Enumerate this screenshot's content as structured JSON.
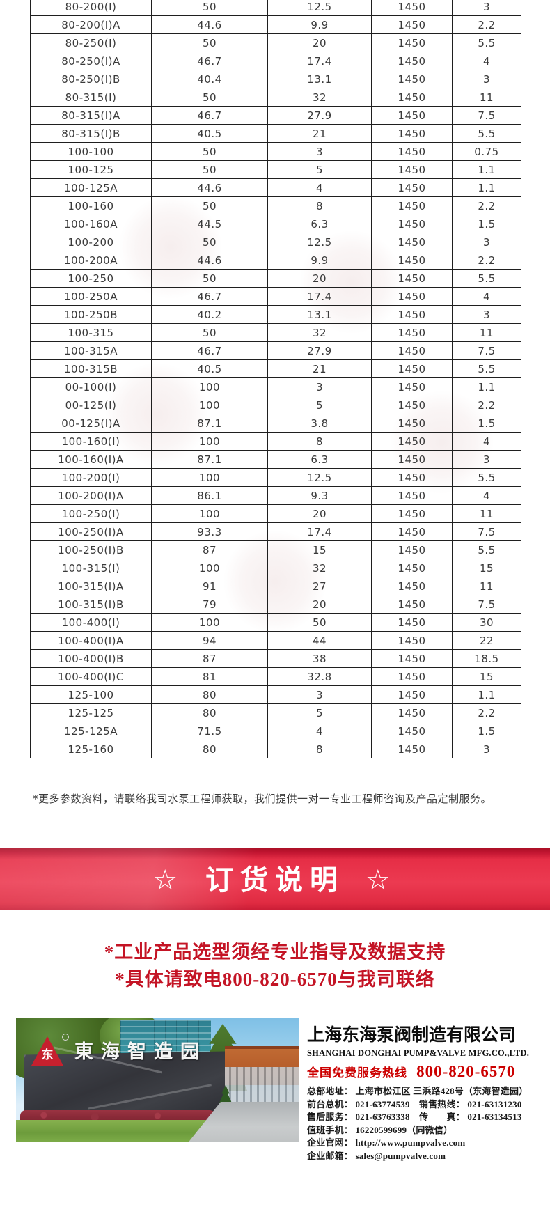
{
  "colors": {
    "banner_red": "#e62e46",
    "banner_red_dark": "#ab0f26",
    "notice_red": "#c41425",
    "hotline_red": "#cc0000",
    "logo_red": "#c6202e"
  },
  "table": {
    "rows": [
      [
        "80-200(I)",
        "50",
        "12.5",
        "1450",
        "3"
      ],
      [
        "80-200(I)A",
        "44.6",
        "9.9",
        "1450",
        "2.2"
      ],
      [
        "80-250(I)",
        "50",
        "20",
        "1450",
        "5.5"
      ],
      [
        "80-250(I)A",
        "46.7",
        "17.4",
        "1450",
        "4"
      ],
      [
        "80-250(I)B",
        "40.4",
        "13.1",
        "1450",
        "3"
      ],
      [
        "80-315(I)",
        "50",
        "32",
        "1450",
        "11"
      ],
      [
        "80-315(I)A",
        "46.7",
        "27.9",
        "1450",
        "7.5"
      ],
      [
        "80-315(I)B",
        "40.5",
        "21",
        "1450",
        "5.5"
      ],
      [
        "100-100",
        "50",
        "3",
        "1450",
        "0.75"
      ],
      [
        "100-125",
        "50",
        "5",
        "1450",
        "1.1"
      ],
      [
        "100-125A",
        "44.6",
        "4",
        "1450",
        "1.1"
      ],
      [
        "100-160",
        "50",
        "8",
        "1450",
        "2.2"
      ],
      [
        "100-160A",
        "44.5",
        "6.3",
        "1450",
        "1.5"
      ],
      [
        "100-200",
        "50",
        "12.5",
        "1450",
        "3"
      ],
      [
        "100-200A",
        "44.6",
        "9.9",
        "1450",
        "2.2"
      ],
      [
        "100-250",
        "50",
        "20",
        "1450",
        "5.5"
      ],
      [
        "100-250A",
        "46.7",
        "17.4",
        "1450",
        "4"
      ],
      [
        "100-250B",
        "40.2",
        "13.1",
        "1450",
        "3"
      ],
      [
        "100-315",
        "50",
        "32",
        "1450",
        "11"
      ],
      [
        "100-315A",
        "46.7",
        "27.9",
        "1450",
        "7.5"
      ],
      [
        "100-315B",
        "40.5",
        "21",
        "1450",
        "5.5"
      ],
      [
        "00-100(I)",
        "100",
        "3",
        "1450",
        "1.1"
      ],
      [
        "00-125(I)",
        "100",
        "5",
        "1450",
        "2.2"
      ],
      [
        "00-125(I)A",
        "87.1",
        "3.8",
        "1450",
        "1.5"
      ],
      [
        "100-160(I)",
        "100",
        "8",
        "1450",
        "4"
      ],
      [
        "100-160(I)A",
        "87.1",
        "6.3",
        "1450",
        "3"
      ],
      [
        "100-200(I)",
        "100",
        "12.5",
        "1450",
        "5.5"
      ],
      [
        "100-200(I)A",
        "86.1",
        "9.3",
        "1450",
        "4"
      ],
      [
        "100-250(I)",
        "100",
        "20",
        "1450",
        "11"
      ],
      [
        "100-250(I)A",
        "93.3",
        "17.4",
        "1450",
        "7.5"
      ],
      [
        "100-250(I)B",
        "87",
        "15",
        "1450",
        "5.5"
      ],
      [
        "100-315(I)",
        "100",
        "32",
        "1450",
        "15"
      ],
      [
        "100-315(I)A",
        "91",
        "27",
        "1450",
        "11"
      ],
      [
        "100-315(I)B",
        "79",
        "20",
        "1450",
        "7.5"
      ],
      [
        "100-400(I)",
        "100",
        "50",
        "1450",
        "30"
      ],
      [
        "100-400(I)A",
        "94",
        "44",
        "1450",
        "22"
      ],
      [
        "100-400(I)B",
        "87",
        "38",
        "1450",
        "18.5"
      ],
      [
        "100-400(I)C",
        "81",
        "32.8",
        "1450",
        "15"
      ],
      [
        "125-100",
        "80",
        "3",
        "1450",
        "1.1"
      ],
      [
        "125-125",
        "80",
        "5",
        "1450",
        "2.2"
      ],
      [
        "125-125A",
        "71.5",
        "4",
        "1450",
        "1.5"
      ],
      [
        "125-160",
        "80",
        "8",
        "1450",
        "3"
      ]
    ]
  },
  "note": "*更多参数资料，请联络我司水泵工程师获取，我们提供一对一专业工程师咨询及产品定制服务。",
  "banner": {
    "title": "☆ 订货说明 ☆"
  },
  "notice_lines": [
    "*工业产品选型须经专业指导及数据支持",
    "*具体请致电800-820-6570与我司联络"
  ],
  "footer": {
    "photo": {
      "sign_text": "東海智造园",
      "logo_glyph": "东"
    },
    "company_cn": "上海东海泵阀制造有限公司",
    "company_en": "SHANGHAI DONGHAI PUMP&VALVE MFG.CO.,LTD.",
    "hotline_label": "全国免费服务热线",
    "hotline_number": "800-820-6570",
    "contact_lines": [
      "总部地址： 上海市松江区 三浜路428号（东海智造园）",
      "前台总机： 021-63774539　销售热线： 021-63131230",
      "售后服务： 021-63763338　传　　真： 021-63134513",
      "值班手机： 16220599699（同微信）",
      "企业官网： http://www.pumpvalve.com",
      "企业邮箱： sales@pumpvalve.com"
    ]
  }
}
